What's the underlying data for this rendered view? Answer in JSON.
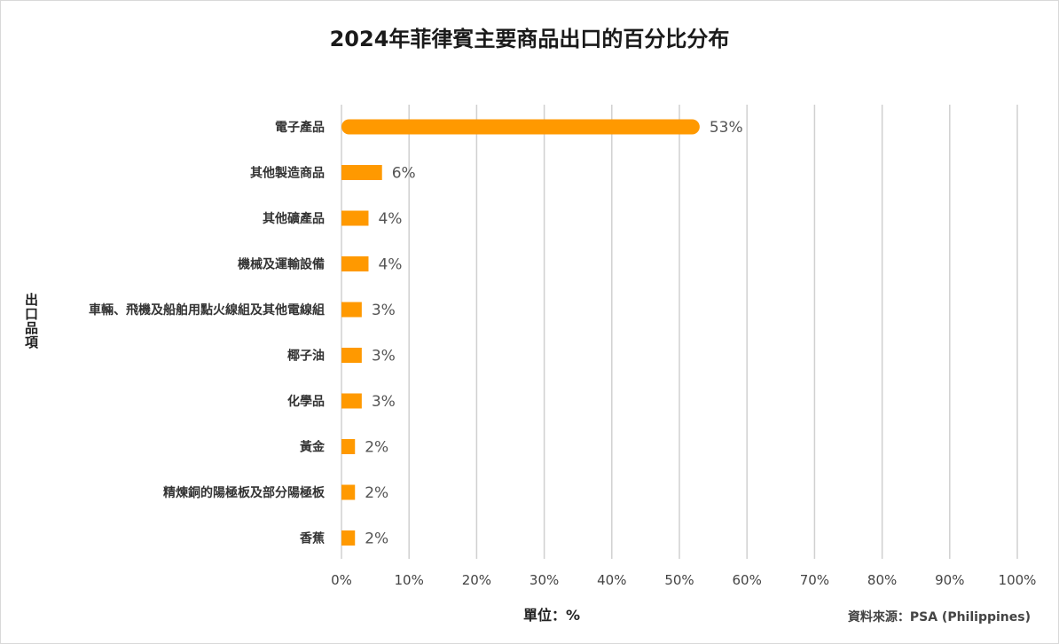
{
  "chart_data": {
    "type": "bar",
    "orientation": "horizontal",
    "title": "2024年菲律賓主要商品出口的百分比分布",
    "xlabel": "單位：%",
    "ylabel": "出口品項",
    "categories": [
      "電子產品",
      "其他製造商品",
      "其他礦產品",
      "機械及運輸設備",
      "車輛、飛機及船舶用點火線組及其他電線組",
      "椰子油",
      "化學品",
      "黃金",
      "精煉銅的陽極板及部分陽極板",
      "香蕉"
    ],
    "values": [
      53,
      6,
      4,
      4,
      3,
      3,
      3,
      2,
      2,
      2
    ],
    "value_labels": [
      "53%",
      "6%",
      "4%",
      "4%",
      "3%",
      "3%",
      "3%",
      "2%",
      "2%",
      "2%"
    ],
    "xlim": [
      0,
      100
    ],
    "xticks": [
      "0%",
      "10%",
      "20%",
      "30%",
      "40%",
      "50%",
      "60%",
      "70%",
      "80%",
      "90%",
      "100%"
    ],
    "grid": true,
    "bar_color": "#ff9900",
    "source": "資料來源：PSA (Philippines)"
  }
}
